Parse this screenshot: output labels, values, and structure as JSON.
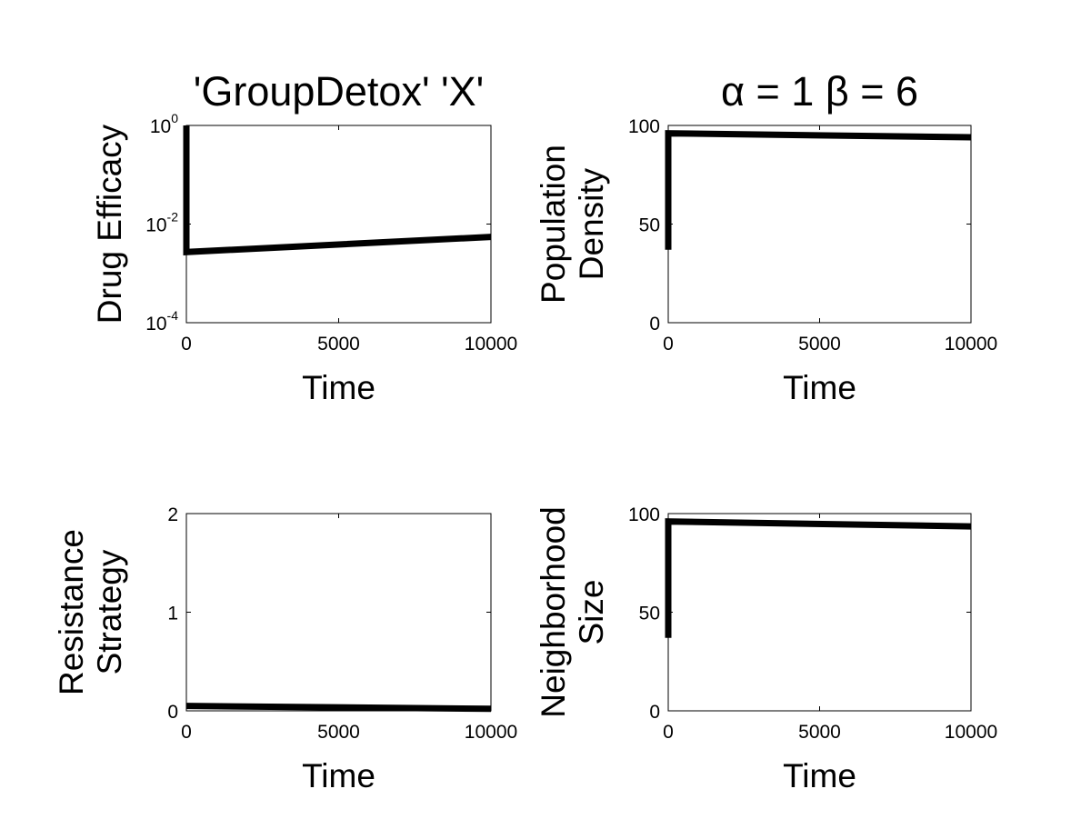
{
  "figure": {
    "line_color": "#000000",
    "background": "#ffffff"
  },
  "chart_data": [
    {
      "type": "line",
      "title": "'GroupDetox' 'X'",
      "xlabel": "Time",
      "ylabel": [
        "Drug Efficacy"
      ],
      "xlim": [
        0,
        10000
      ],
      "ylim": [
        0.0001,
        1
      ],
      "yscale": "log",
      "xticks": [
        0,
        5000,
        10000
      ],
      "xtick_labels": [
        "0",
        "5000",
        "10000"
      ],
      "yticks": [
        0.0001,
        0.01,
        1
      ],
      "ytick_labels": [
        {
          "base": "10",
          "exp": "-4"
        },
        {
          "base": "10",
          "exp": "-2"
        },
        {
          "base": "10",
          "exp": "0"
        }
      ],
      "grid": false,
      "series": [
        {
          "x": [
            0,
            0,
            10000
          ],
          "y": [
            1,
            0.0027,
            0.0055
          ]
        }
      ]
    },
    {
      "type": "line",
      "title": "α = 1 β = 6",
      "xlabel": "Time",
      "ylabel": [
        "Population",
        "Density"
      ],
      "xlim": [
        0,
        10000
      ],
      "ylim": [
        0,
        100
      ],
      "yscale": "linear",
      "xticks": [
        0,
        5000,
        10000
      ],
      "xtick_labels": [
        "0",
        "5000",
        "10000"
      ],
      "yticks": [
        0,
        50,
        100
      ],
      "ytick_labels": [
        "0",
        "50",
        "100"
      ],
      "grid": false,
      "series": [
        {
          "x": [
            0,
            0,
            10000
          ],
          "y": [
            37,
            96,
            94
          ]
        }
      ]
    },
    {
      "type": "line",
      "title": "",
      "xlabel": "Time",
      "ylabel": [
        "Resistance",
        "Strategy"
      ],
      "xlim": [
        0,
        10000
      ],
      "ylim": [
        0,
        2
      ],
      "yscale": "linear",
      "xticks": [
        0,
        5000,
        10000
      ],
      "xtick_labels": [
        "0",
        "5000",
        "10000"
      ],
      "yticks": [
        0,
        1,
        2
      ],
      "ytick_labels": [
        "0",
        "1",
        "2"
      ],
      "grid": false,
      "series": [
        {
          "x": [
            0,
            10000
          ],
          "y": [
            0.05,
            0.02
          ]
        }
      ]
    },
    {
      "type": "line",
      "title": "",
      "xlabel": "Time",
      "ylabel": [
        "Neighborhood",
        "Size"
      ],
      "xlim": [
        0,
        10000
      ],
      "ylim": [
        0,
        100
      ],
      "yscale": "linear",
      "xticks": [
        0,
        5000,
        10000
      ],
      "xtick_labels": [
        "0",
        "5000",
        "10000"
      ],
      "yticks": [
        0,
        50,
        100
      ],
      "ytick_labels": [
        "0",
        "50",
        "100"
      ],
      "grid": false,
      "series": [
        {
          "x": [
            0,
            0,
            10000
          ],
          "y": [
            37,
            96,
            93.5
          ]
        }
      ]
    }
  ]
}
